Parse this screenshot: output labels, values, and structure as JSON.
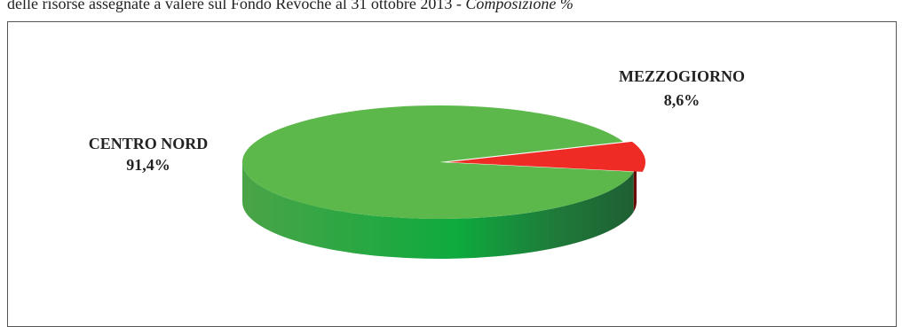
{
  "caption": {
    "text": "delle risorse assegnate a valere sul Fondo Revoche al 31 ottobre 2013 - ",
    "italic": "Composizione %"
  },
  "chart_data": {
    "type": "pie",
    "style": "3d",
    "categories": [
      "CENTRO NORD",
      "MEZZOGIORNO"
    ],
    "values": [
      91.4,
      8.6
    ],
    "value_labels": [
      "91,4%",
      "8,6%"
    ],
    "colors": [
      "#5cb84a",
      "#ee2b24"
    ],
    "side_colors": [
      "#2f8a3a",
      "#6a0a08"
    ]
  }
}
